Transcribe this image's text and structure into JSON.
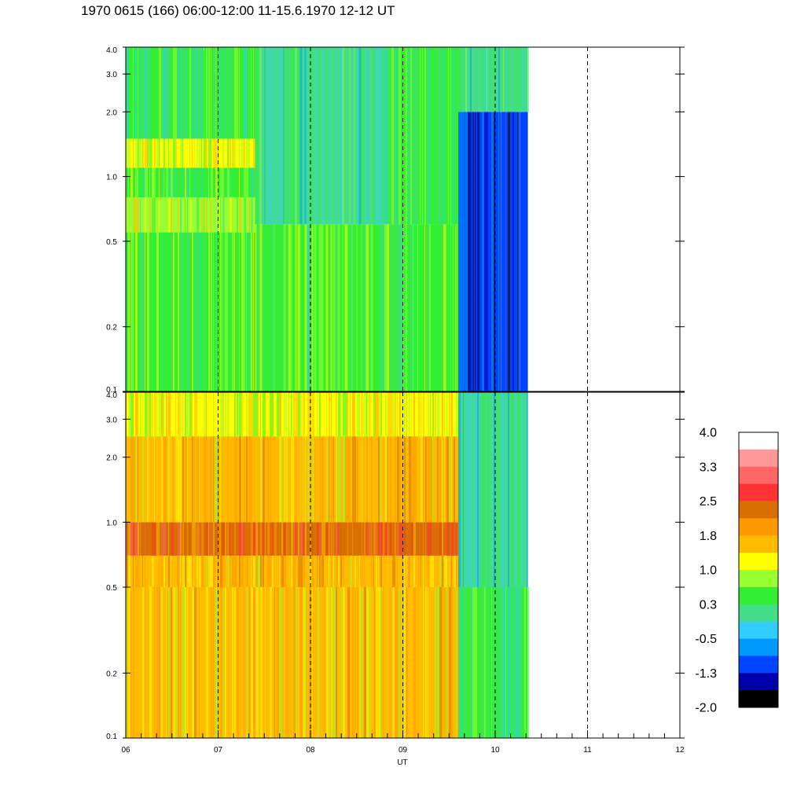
{
  "title": "1970 0615 (166) 06:00-12:00 11-15.6.1970  12-12 UT",
  "chart_data": {
    "type": "heatmap",
    "title": "1970 0615 (166) 06:00-12:00 11-15.6.1970  12-12 UT",
    "xlabel": "UT",
    "x_tick_labels": [
      "06",
      "07",
      "08",
      "09",
      "10",
      "11",
      "12"
    ],
    "x_range": [
      6,
      12
    ],
    "data_end_x": 10.35,
    "y_scale": "log",
    "y_range": [
      0.1,
      4.0
    ],
    "panels": [
      {
        "name": "upper",
        "y_tick_labels": [
          "4.0",
          "3.0",
          "2.0",
          "1.0",
          "0.5",
          "0.2",
          "0.1"
        ],
        "bands": [
          {
            "x0": 6.0,
            "x1": 7.4,
            "y0": 0.1,
            "y1": 0.55,
            "level": 0.6
          },
          {
            "x0": 6.0,
            "x1": 7.4,
            "y0": 0.55,
            "y1": 0.8,
            "level": 0.9
          },
          {
            "x0": 6.0,
            "x1": 7.4,
            "y0": 0.8,
            "y1": 1.1,
            "level": 0.4
          },
          {
            "x0": 6.0,
            "x1": 7.4,
            "y0": 1.1,
            "y1": 1.5,
            "level": 1.0
          },
          {
            "x0": 6.0,
            "x1": 7.4,
            "y0": 1.5,
            "y1": 4.0,
            "level": 0.3
          },
          {
            "x0": 7.4,
            "x1": 8.8,
            "y0": 0.1,
            "y1": 0.6,
            "level": 0.6
          },
          {
            "x0": 7.4,
            "x1": 8.8,
            "y0": 0.6,
            "y1": 4.0,
            "level": 0.1
          },
          {
            "x0": 8.8,
            "x1": 9.6,
            "y0": 0.1,
            "y1": 0.6,
            "level": 0.6
          },
          {
            "x0": 8.8,
            "x1": 9.6,
            "y0": 0.6,
            "y1": 4.0,
            "level": 0.3
          },
          {
            "x0": 9.6,
            "x1": 10.35,
            "y0": 0.1,
            "y1": 2.0,
            "level": -1.2
          },
          {
            "x0": 9.6,
            "x1": 10.35,
            "y0": 2.0,
            "y1": 4.0,
            "level": 0.1
          }
        ]
      },
      {
        "name": "lower",
        "y_tick_labels": [
          "4.0",
          "3.0",
          "2.0",
          "1.0",
          "0.5",
          "0.2",
          "0.1"
        ],
        "bands": [
          {
            "x0": 6.0,
            "x1": 9.6,
            "y0": 0.1,
            "y1": 0.5,
            "level": 1.5
          },
          {
            "x0": 6.0,
            "x1": 9.6,
            "y0": 0.5,
            "y1": 0.7,
            "level": 1.7
          },
          {
            "x0": 6.0,
            "x1": 9.6,
            "y0": 0.7,
            "y1": 1.0,
            "level": 2.3
          },
          {
            "x0": 6.0,
            "x1": 9.6,
            "y0": 1.0,
            "y1": 2.5,
            "level": 1.6
          },
          {
            "x0": 6.0,
            "x1": 9.6,
            "y0": 2.5,
            "y1": 4.0,
            "level": 1.1
          },
          {
            "x0": 9.6,
            "x1": 10.35,
            "y0": 0.1,
            "y1": 0.5,
            "level": 0.3
          },
          {
            "x0": 9.6,
            "x1": 10.35,
            "y0": 0.5,
            "y1": 4.0,
            "level": 0.0
          }
        ]
      }
    ],
    "colorbar": {
      "tick_labels": [
        "4.0",
        "3.3",
        "2.5",
        "1.8",
        "1.0",
        "0.3",
        "-0.5",
        "-1.3",
        "-2.0"
      ],
      "range": [
        -2.0,
        4.0
      ],
      "colors": [
        "#ffffff",
        "#ff9999",
        "#ff6666",
        "#ff3333",
        "#d87000",
        "#ff9900",
        "#ffbb00",
        "#ffff00",
        "#99ff33",
        "#33ee33",
        "#44dd88",
        "#33ccff",
        "#0099ff",
        "#0044ff",
        "#0000aa",
        "#000000"
      ]
    }
  }
}
